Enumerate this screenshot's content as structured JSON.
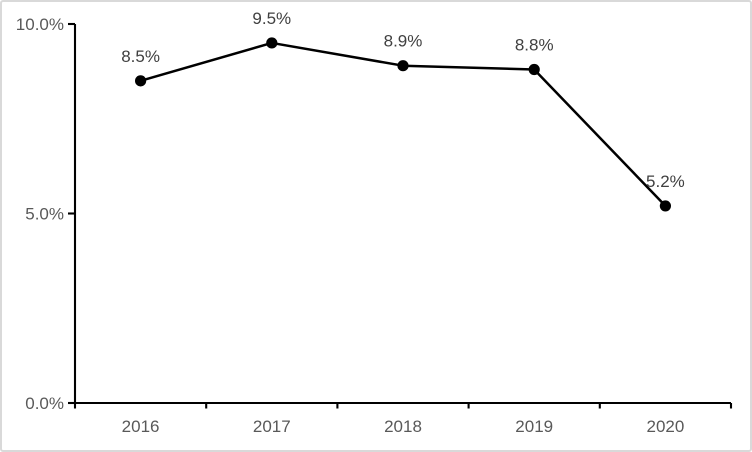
{
  "chart_data": {
    "type": "line",
    "title": "",
    "xlabel": "",
    "ylabel": "",
    "categories": [
      "2016",
      "2017",
      "2018",
      "2019",
      "2020"
    ],
    "values": [
      8.5,
      9.5,
      8.9,
      8.8,
      5.2
    ],
    "point_labels": [
      "8.5%",
      "9.5%",
      "8.9%",
      "8.8%",
      "5.2%"
    ],
    "ylim": [
      0,
      10
    ],
    "y_ticks": [
      {
        "value": 0,
        "label": "0.0%"
      },
      {
        "value": 5,
        "label": "5.0%"
      },
      {
        "value": 10,
        "label": "10.0%"
      }
    ],
    "grid": false,
    "legend": false,
    "colors": {
      "series_line": "#000000",
      "marker_fill": "#000000",
      "axis_line": "#000000",
      "tick_label": "#595959",
      "data_label": "#404040",
      "background": "#ffffff",
      "frame_border": "#d9d9d9"
    }
  }
}
